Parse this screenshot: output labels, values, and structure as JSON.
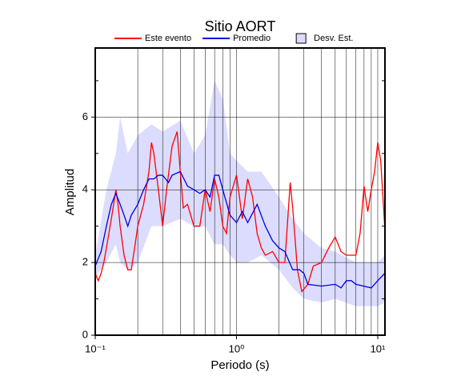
{
  "chart_data": {
    "type": "line",
    "title": "Sitio AORT",
    "xlabel": "Periodo (s)",
    "ylabel": "Amplitud",
    "log_x": true,
    "grid": true,
    "xlim": [
      0.1,
      11.25
    ],
    "ylim": [
      0,
      7.9
    ],
    "xticks": [
      {
        "value": 0.1,
        "label": "10⁻¹"
      },
      {
        "value": 1,
        "label": "10⁰"
      },
      {
        "value": 10,
        "label": "10¹"
      }
    ],
    "xminorticks": [
      0.2,
      0.3,
      0.4,
      0.5,
      0.6,
      0.7,
      0.8,
      0.9,
      2,
      3,
      4,
      5,
      6,
      7,
      8,
      9
    ],
    "yticks": [
      0,
      2,
      4,
      6
    ],
    "yminorticks": [
      1,
      3,
      5,
      7
    ],
    "series": [
      {
        "name": "Este evento",
        "color": "#ff0000",
        "x": [
          0.1,
          0.105,
          0.11,
          0.115,
          0.12,
          0.13,
          0.14,
          0.145,
          0.15,
          0.16,
          0.17,
          0.18,
          0.19,
          0.2,
          0.22,
          0.24,
          0.25,
          0.26,
          0.28,
          0.3,
          0.32,
          0.35,
          0.38,
          0.4,
          0.42,
          0.45,
          0.5,
          0.55,
          0.6,
          0.65,
          0.7,
          0.75,
          0.8,
          0.85,
          0.9,
          1.0,
          1.05,
          1.1,
          1.2,
          1.3,
          1.4,
          1.5,
          1.6,
          1.8,
          2.0,
          2.2,
          2.4,
          2.5,
          2.7,
          2.9,
          3.2,
          3.5,
          4.0,
          4.5,
          5.0,
          5.5,
          6.0,
          7.0,
          7.5,
          8.0,
          8.5,
          9.0,
          9.5,
          10.0,
          10.5,
          11.2
        ],
        "values": [
          1.7,
          1.5,
          1.7,
          2.0,
          2.4,
          3.2,
          4.0,
          3.6,
          3.0,
          2.2,
          1.8,
          1.8,
          2.4,
          3.0,
          3.6,
          4.5,
          5.3,
          5.0,
          4.0,
          3.0,
          4.0,
          5.2,
          5.6,
          4.5,
          3.5,
          3.6,
          3.0,
          3.0,
          4.0,
          3.4,
          4.3,
          3.8,
          3.0,
          2.8,
          3.8,
          4.4,
          3.8,
          3.2,
          4.3,
          3.8,
          2.8,
          2.4,
          2.2,
          2.3,
          2.0,
          2.0,
          4.2,
          3.5,
          1.8,
          1.2,
          1.4,
          1.9,
          2.0,
          2.4,
          2.7,
          2.3,
          2.2,
          2.2,
          2.8,
          4.1,
          3.4,
          4.0,
          4.5,
          5.3,
          4.8,
          3.0
        ]
      },
      {
        "name": "Promedio",
        "color": "#0000dd",
        "x": [
          0.1,
          0.11,
          0.12,
          0.13,
          0.14,
          0.15,
          0.16,
          0.17,
          0.18,
          0.2,
          0.22,
          0.24,
          0.26,
          0.28,
          0.3,
          0.33,
          0.35,
          0.4,
          0.45,
          0.5,
          0.55,
          0.6,
          0.65,
          0.7,
          0.75,
          0.8,
          0.9,
          1.0,
          1.1,
          1.2,
          1.4,
          1.6,
          1.8,
          2.0,
          2.2,
          2.5,
          2.8,
          3.0,
          3.2,
          4.0,
          5.0,
          5.5,
          6.0,
          6.5,
          7.0,
          9.0,
          10.0,
          11.2
        ],
        "values": [
          1.9,
          2.3,
          3.0,
          3.6,
          3.9,
          3.6,
          3.3,
          3.0,
          3.3,
          3.6,
          4.0,
          4.3,
          4.3,
          4.4,
          4.4,
          4.2,
          4.4,
          4.5,
          4.1,
          4.0,
          3.9,
          4.0,
          3.8,
          4.4,
          4.4,
          4.0,
          3.3,
          3.1,
          3.4,
          3.1,
          3.6,
          3.0,
          2.6,
          2.4,
          2.3,
          1.8,
          1.8,
          1.7,
          1.4,
          1.35,
          1.4,
          1.3,
          1.5,
          1.5,
          1.4,
          1.3,
          1.5,
          1.7
        ]
      }
    ],
    "band": {
      "name": "Desv. Est.",
      "color": "#dcdcff",
      "x": [
        0.1,
        0.12,
        0.14,
        0.15,
        0.17,
        0.2,
        0.25,
        0.3,
        0.4,
        0.5,
        0.6,
        0.7,
        0.8,
        0.9,
        1.0,
        1.2,
        1.5,
        2.0,
        2.5,
        3.0,
        4.0,
        5.0,
        7.0,
        10.0,
        11.2
      ],
      "upper": [
        2.2,
        4.0,
        5.0,
        6.0,
        5.0,
        5.5,
        5.8,
        5.6,
        5.9,
        5.0,
        5.5,
        7.0,
        6.5,
        5.0,
        4.8,
        4.5,
        4.5,
        3.8,
        3.2,
        2.8,
        2.4,
        2.3,
        2.0,
        2.0,
        2.2
      ],
      "lower": [
        1.6,
        2.0,
        2.5,
        2.0,
        1.8,
        2.0,
        3.0,
        3.0,
        3.2,
        3.0,
        3.0,
        2.5,
        2.5,
        2.2,
        2.0,
        2.0,
        2.2,
        1.8,
        1.3,
        1.0,
        0.9,
        1.0,
        0.8,
        0.8,
        0.9
      ]
    }
  }
}
